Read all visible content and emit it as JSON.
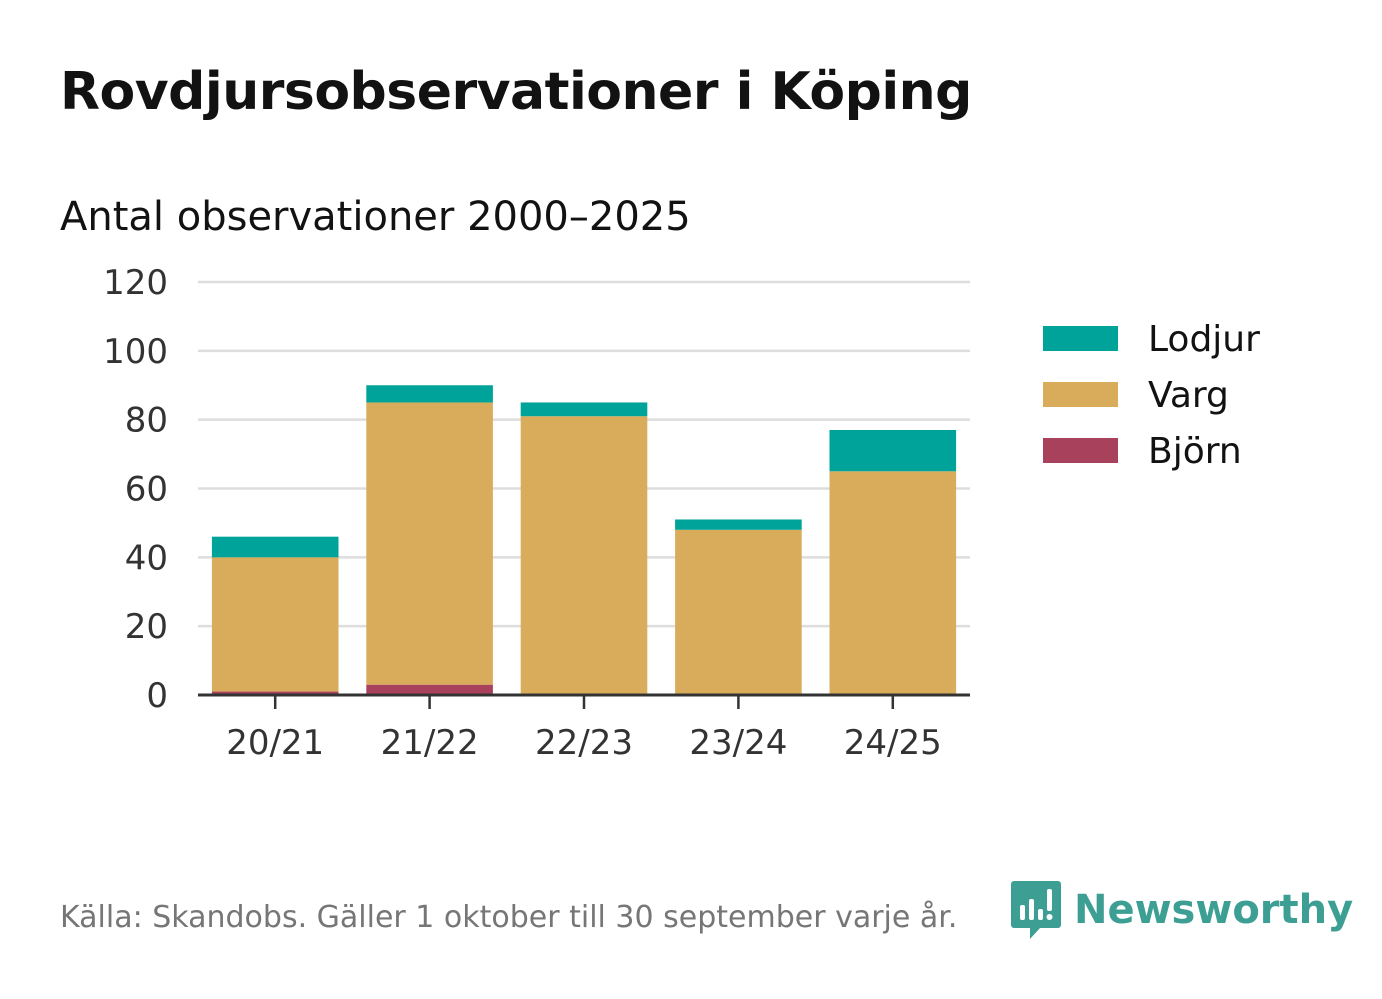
{
  "title": "Rovdjursobservationer i Köping",
  "subtitle": "Antal observationer 2000–2025",
  "source": "Källa: Skandobs. Gäller 1 oktober till 30 september varje år.",
  "brand": {
    "name": "Newsworthy",
    "icon": "newsworthy-logo-icon",
    "color": "#3d9f94"
  },
  "chart_data": {
    "type": "bar",
    "stacked": true,
    "title": "Antal observationer 2000–2025",
    "xlabel": "",
    "ylabel": "",
    "ylim": [
      0,
      120
    ],
    "yticks": [
      0,
      20,
      40,
      60,
      80,
      100,
      120
    ],
    "categories": [
      "20/21",
      "21/22",
      "22/23",
      "23/24",
      "24/25"
    ],
    "series": [
      {
        "name": "Björn",
        "color": "#a8425c",
        "values": [
          1,
          3,
          0,
          0,
          0
        ]
      },
      {
        "name": "Varg",
        "color": "#d9ac5b",
        "values": [
          39,
          82,
          81,
          48,
          65
        ]
      },
      {
        "name": "Lodjur",
        "color": "#00a39a",
        "values": [
          6,
          5,
          4,
          3,
          12
        ]
      }
    ],
    "legend_order": [
      "Lodjur",
      "Varg",
      "Björn"
    ],
    "legend_position": "right",
    "grid": true
  }
}
